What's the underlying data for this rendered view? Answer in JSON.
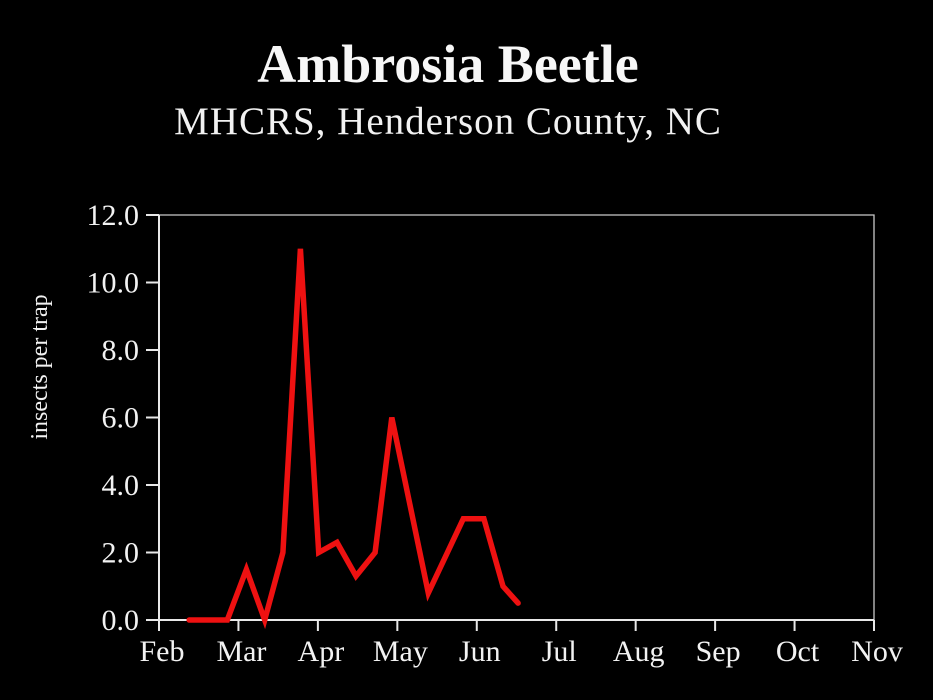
{
  "slide": {
    "title": "Ambrosia Beetle",
    "subtitle": "MHCRS, Henderson County, NC"
  },
  "chart_data": {
    "type": "line",
    "title": "Ambrosia Beetle",
    "subtitle": "MHCRS, Henderson County, NC",
    "xlabel": "",
    "ylabel": "insects per trap",
    "x_tick_labels": [
      "Feb",
      "Mar",
      "Apr",
      "May",
      "Jun",
      "Jul",
      "Aug",
      "Sep",
      "Oct",
      "Nov"
    ],
    "x_unit": "months, 0 = Feb tick and 9 = Nov tick",
    "xlim": [
      0,
      9
    ],
    "ylim": [
      0,
      12
    ],
    "y_ticks": [
      0,
      2,
      4,
      6,
      8,
      10,
      12
    ],
    "y_tick_labels": [
      "0.0",
      "2.0",
      "4.0",
      "6.0",
      "8.0",
      "10.0",
      "12.0"
    ],
    "grid": false,
    "legend": false,
    "series": [
      {
        "name": "insects per trap",
        "color": "#ee1111",
        "points": [
          [
            0.38,
            0.0
          ],
          [
            0.86,
            0.0
          ],
          [
            1.1,
            1.5
          ],
          [
            1.33,
            0.0
          ],
          [
            1.56,
            2.0
          ],
          [
            1.78,
            11.0
          ],
          [
            2.01,
            2.0
          ],
          [
            2.24,
            2.3
          ],
          [
            2.48,
            1.3
          ],
          [
            2.72,
            2.0
          ],
          [
            2.93,
            6.0
          ],
          [
            3.39,
            0.8
          ],
          [
            3.83,
            3.0
          ],
          [
            4.09,
            3.0
          ],
          [
            4.33,
            1.0
          ],
          [
            4.52,
            0.5
          ]
        ]
      }
    ]
  },
  "colors": {
    "background": "#000000",
    "text": "#f2f2f2",
    "axis": "#e8e8e8",
    "frame": "#c9c9c9",
    "line": "#ee1111"
  }
}
